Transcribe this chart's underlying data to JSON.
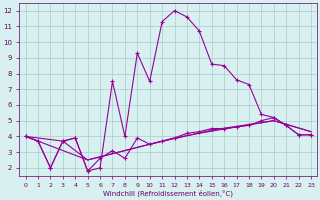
{
  "xlabel": "Windchill (Refroidissement éolien,°C)",
  "background_color": "#d8f0f0",
  "grid_color": "#aacccc",
  "line_color": "#990099",
  "xlim": [
    -0.5,
    23.5
  ],
  "ylim": [
    1.5,
    12.5
  ],
  "xticks": [
    0,
    1,
    2,
    3,
    4,
    5,
    6,
    7,
    8,
    9,
    10,
    11,
    12,
    13,
    14,
    15,
    16,
    17,
    18,
    19,
    20,
    21,
    22,
    23
  ],
  "yticks": [
    2,
    3,
    4,
    5,
    6,
    7,
    8,
    9,
    10,
    11,
    12
  ],
  "line1_x": [
    0,
    1,
    2,
    3,
    4,
    5,
    6,
    7,
    8,
    9,
    10,
    11,
    12,
    13,
    14,
    15,
    16,
    17,
    18,
    19,
    20,
    21,
    22,
    23
  ],
  "line1_y": [
    4.0,
    3.7,
    2.0,
    3.7,
    3.9,
    1.8,
    2.0,
    7.5,
    4.0,
    9.3,
    7.5,
    11.3,
    12.0,
    11.6,
    10.7,
    8.6,
    8.5,
    7.6,
    7.3,
    5.4,
    5.2,
    4.7,
    4.1,
    4.1
  ],
  "line2_x": [
    0,
    1,
    2,
    3,
    4,
    5,
    6,
    7,
    8,
    9,
    10,
    11,
    12,
    13,
    14,
    15,
    16,
    17,
    18,
    19,
    20,
    21,
    22,
    23
  ],
  "line2_y": [
    4.0,
    3.7,
    2.0,
    3.7,
    3.9,
    1.8,
    2.6,
    3.1,
    2.6,
    3.9,
    3.5,
    3.7,
    3.9,
    4.2,
    4.3,
    4.5,
    4.5,
    4.6,
    4.7,
    5.0,
    5.2,
    4.7,
    4.1,
    4.1
  ],
  "line3_x": [
    0,
    3,
    5,
    8,
    10,
    12,
    14,
    20,
    23
  ],
  "line3_y": [
    4.0,
    3.7,
    2.5,
    3.1,
    3.5,
    3.9,
    4.2,
    5.0,
    4.3
  ],
  "line4_x": [
    0,
    5,
    10,
    15,
    20,
    23
  ],
  "line4_y": [
    4.0,
    2.5,
    3.5,
    4.4,
    5.0,
    4.3
  ]
}
